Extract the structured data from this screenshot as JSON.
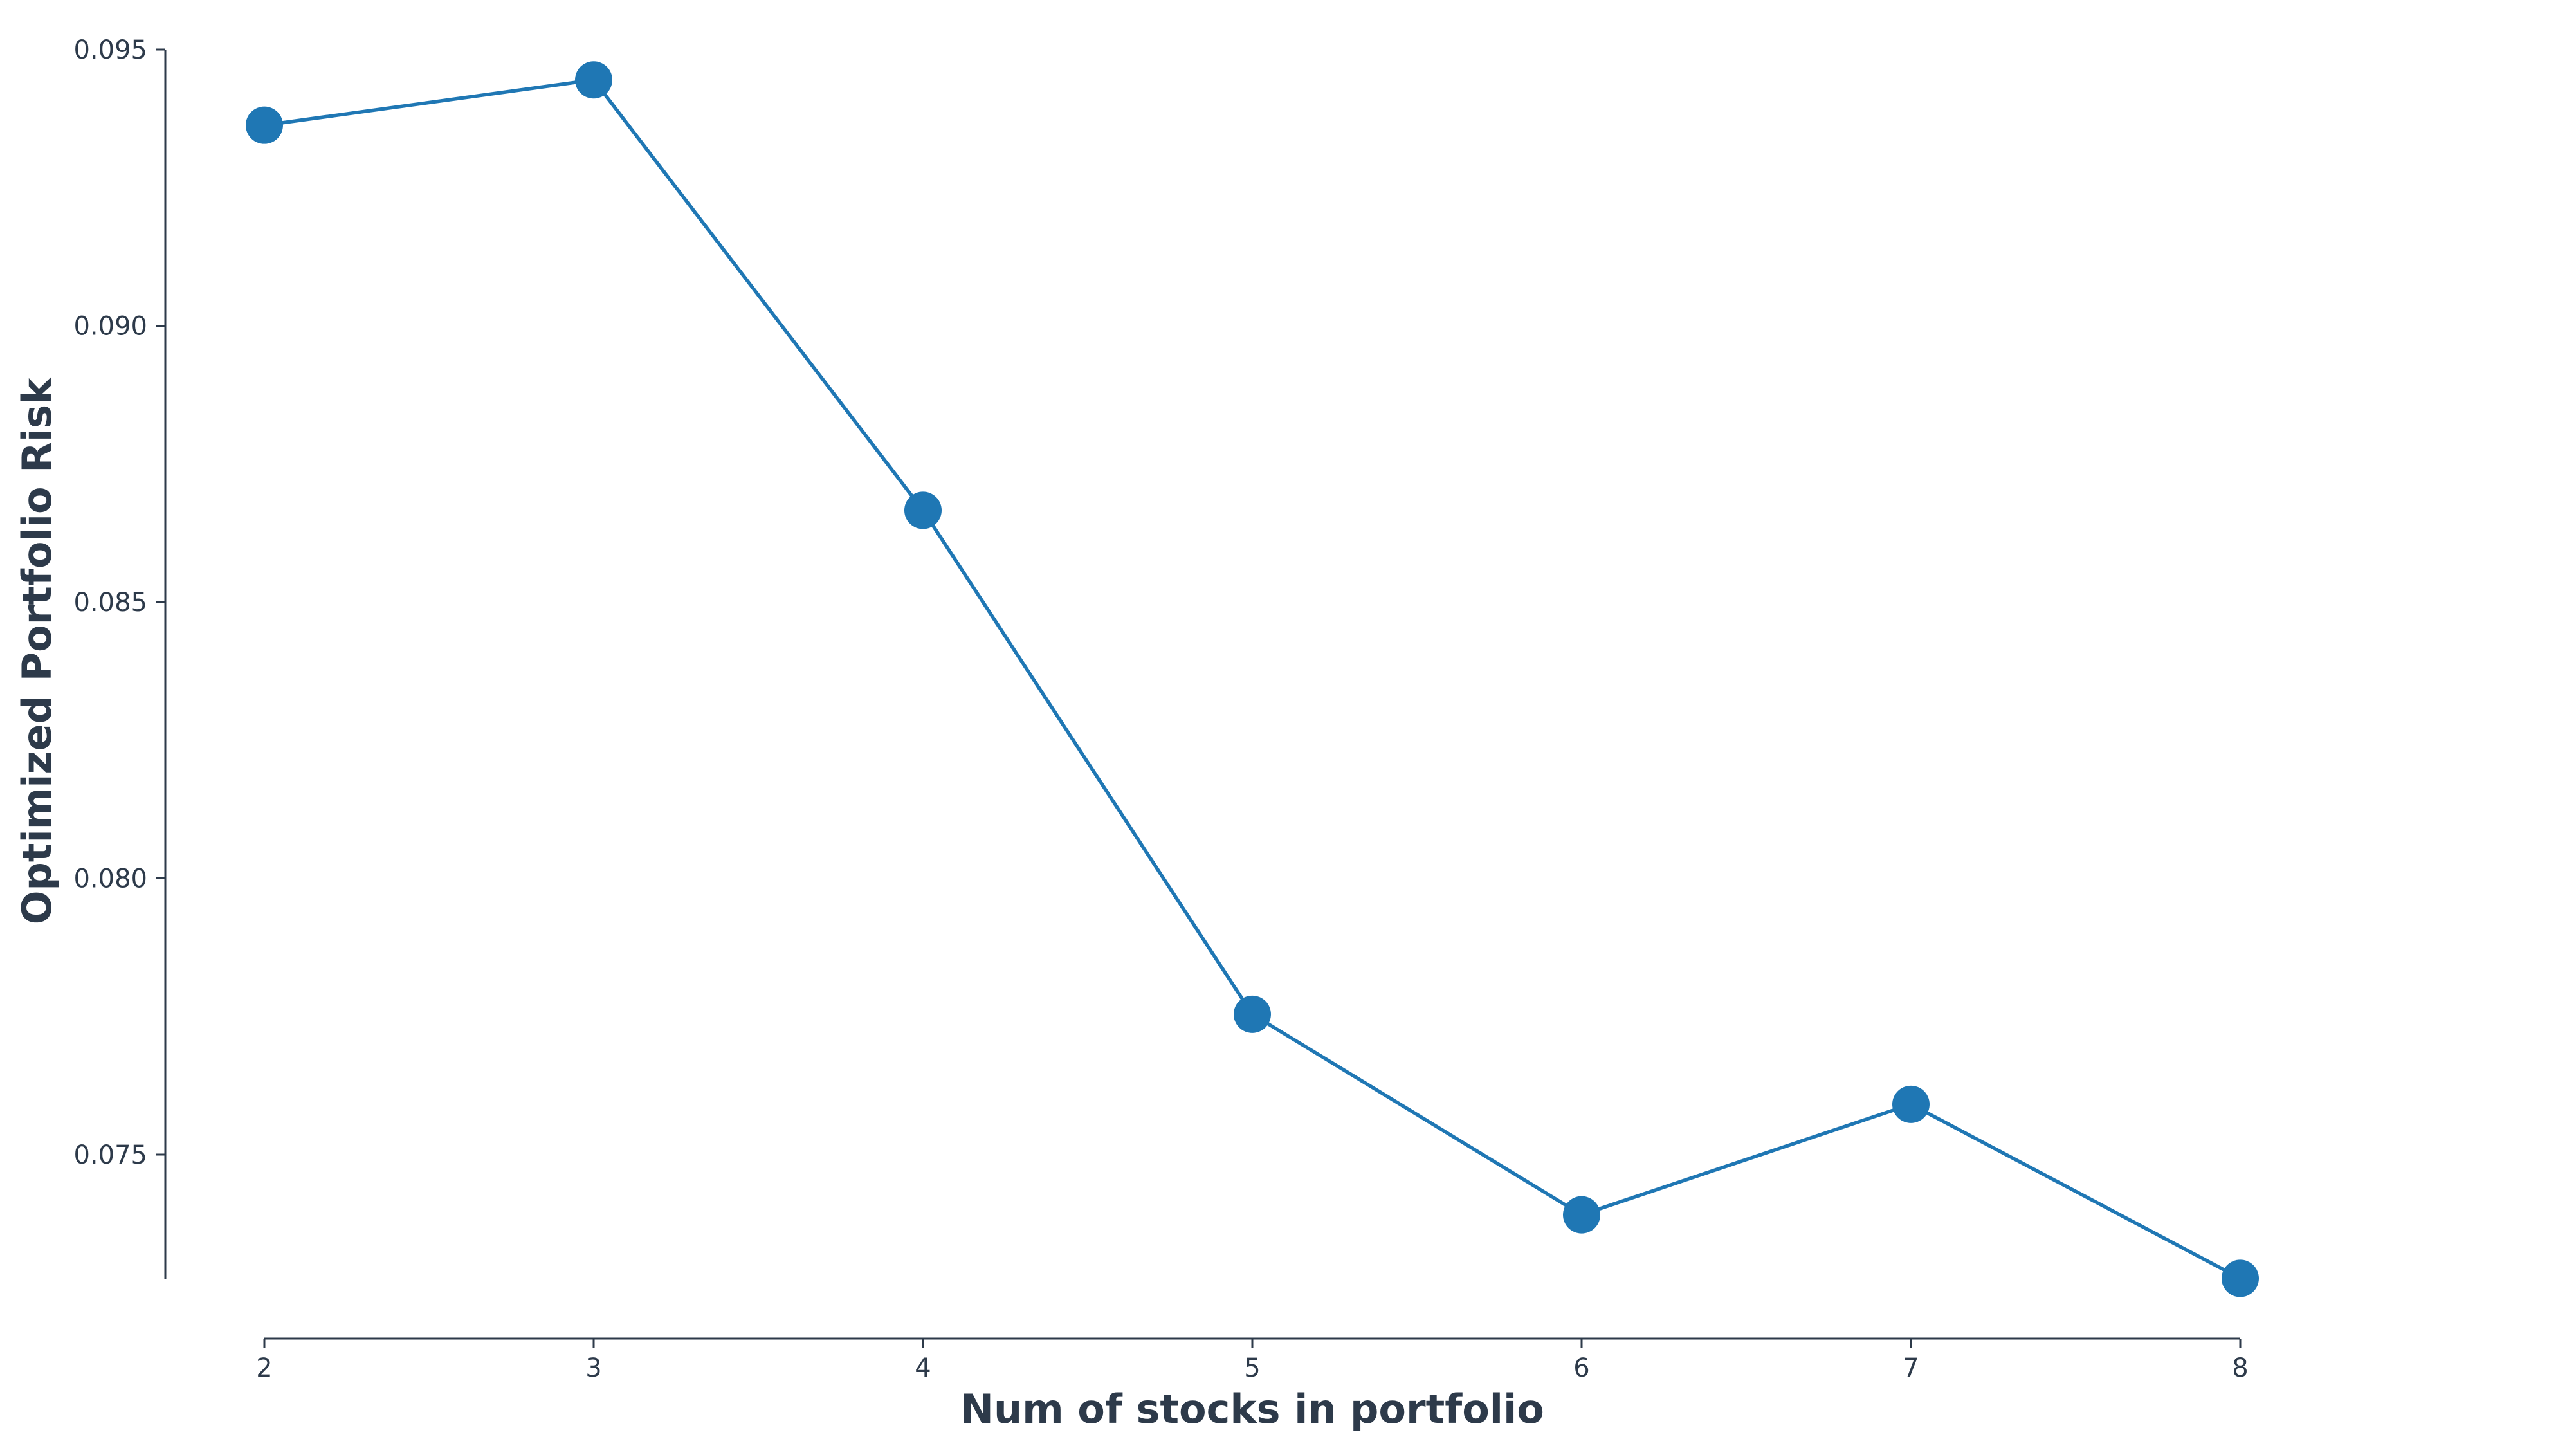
{
  "chart_data": {
    "type": "line",
    "title": "",
    "xlabel": "Num of stocks in portfolio",
    "ylabel": "Optimized Portfolio Risk",
    "x": [
      2,
      3,
      4,
      5,
      6,
      7,
      8
    ],
    "x_tick_labels": [
      "2",
      "3",
      "4",
      "5",
      "6",
      "7",
      "8"
    ],
    "y_ticks": [
      0.075,
      0.08,
      0.085,
      0.09,
      0.095
    ],
    "y_tick_labels": [
      "0.075",
      "0.080",
      "0.085",
      "0.090",
      "0.095"
    ],
    "xlim": [
      1.7,
      8.4
    ],
    "ylim": [
      0.07275,
      0.095
    ],
    "grid": false,
    "legend": "none",
    "series": [
      {
        "color": "#1f77b4",
        "marker": "circle",
        "values": [
          0.09363,
          0.09445,
          0.08666,
          0.07754,
          0.07391,
          0.07591,
          0.07276
        ]
      }
    ],
    "colors": {
      "series": "#1f77b4",
      "axis": "#2d3a4a",
      "text": "#2d3a4a",
      "background": "#ffffff"
    }
  }
}
